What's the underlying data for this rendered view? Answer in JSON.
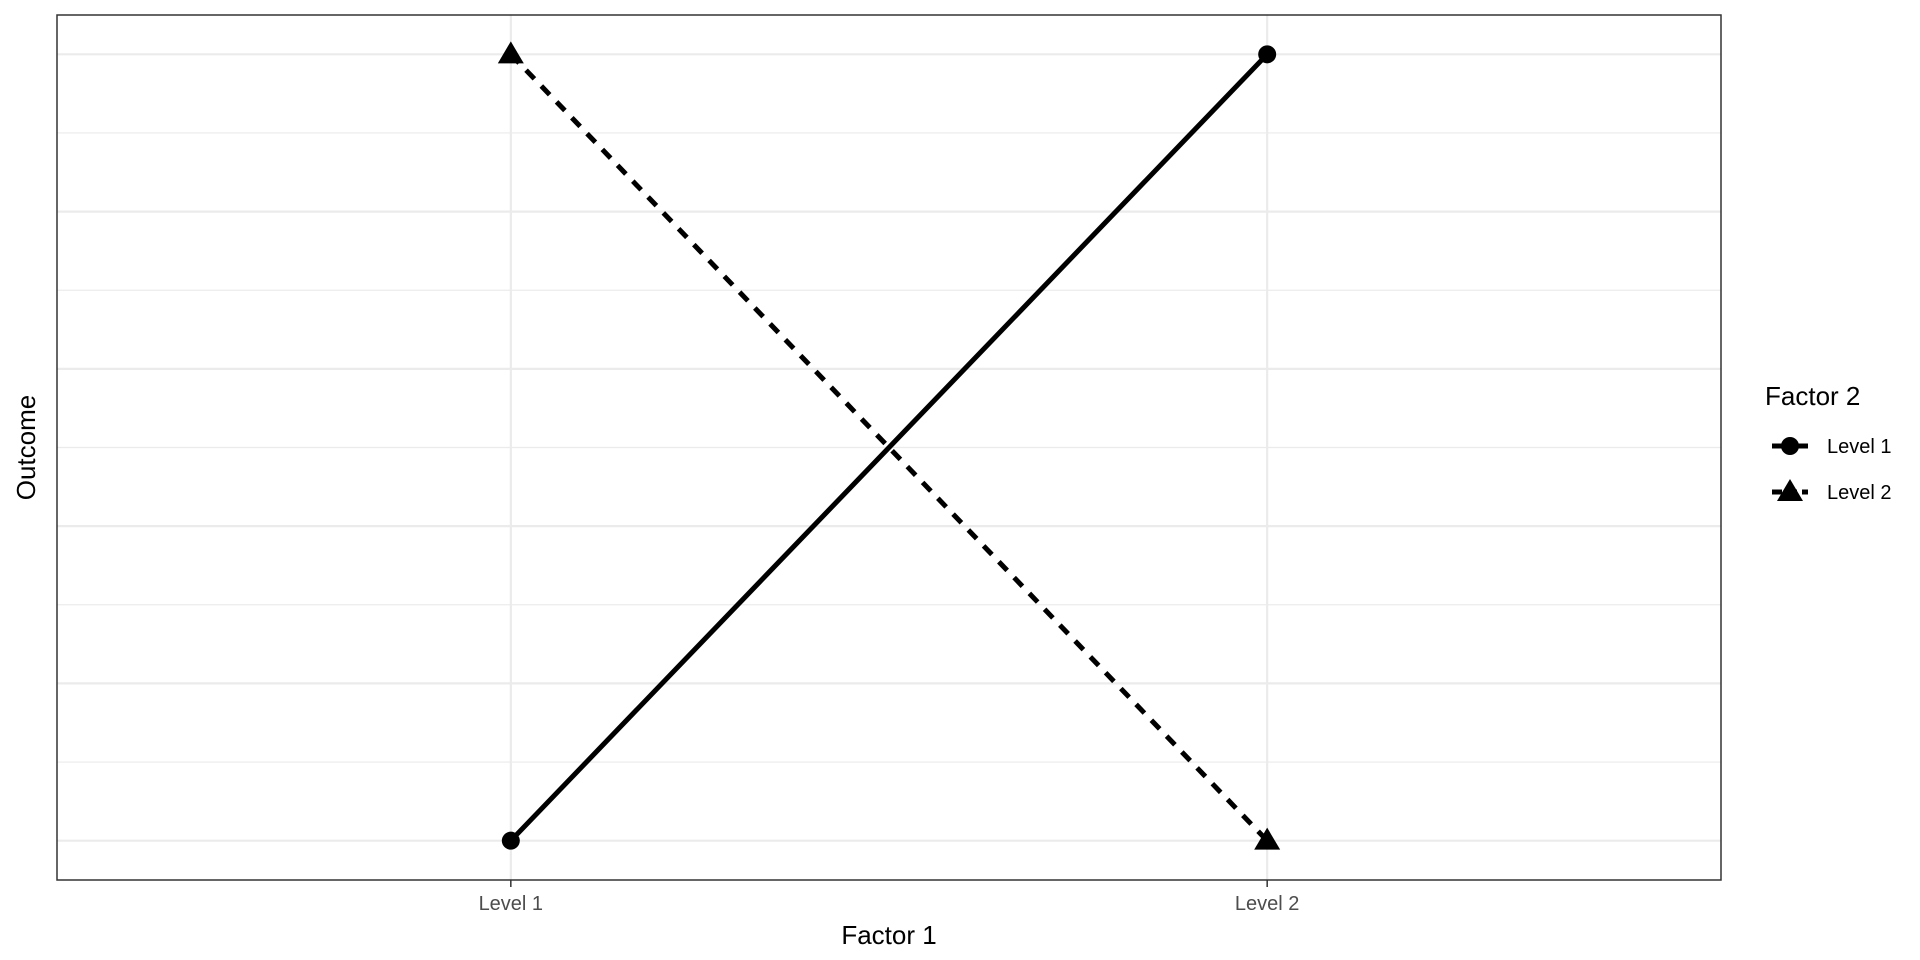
{
  "chart_data": {
    "type": "line",
    "xlabel": "Factor 1",
    "ylabel": "Outcome",
    "categories": [
      "Level 1",
      "Level 2"
    ],
    "ylim": [
      -0.05,
      1.05
    ],
    "y_gridlines": [
      0,
      0.1,
      0.2,
      0.3,
      0.4,
      0.5,
      0.6,
      0.7,
      0.8,
      0.9,
      1.0
    ],
    "y_tick_labels_shown": false,
    "grid": true,
    "legend": {
      "title": "Factor 2",
      "position": "right"
    },
    "series": [
      {
        "name": "Level 1",
        "values": [
          0,
          1
        ],
        "linetype": "solid",
        "shape": "circle",
        "color": "#000000"
      },
      {
        "name": "Level 2",
        "values": [
          1,
          0
        ],
        "linetype": "dashed",
        "shape": "triangle",
        "color": "#000000"
      }
    ]
  }
}
